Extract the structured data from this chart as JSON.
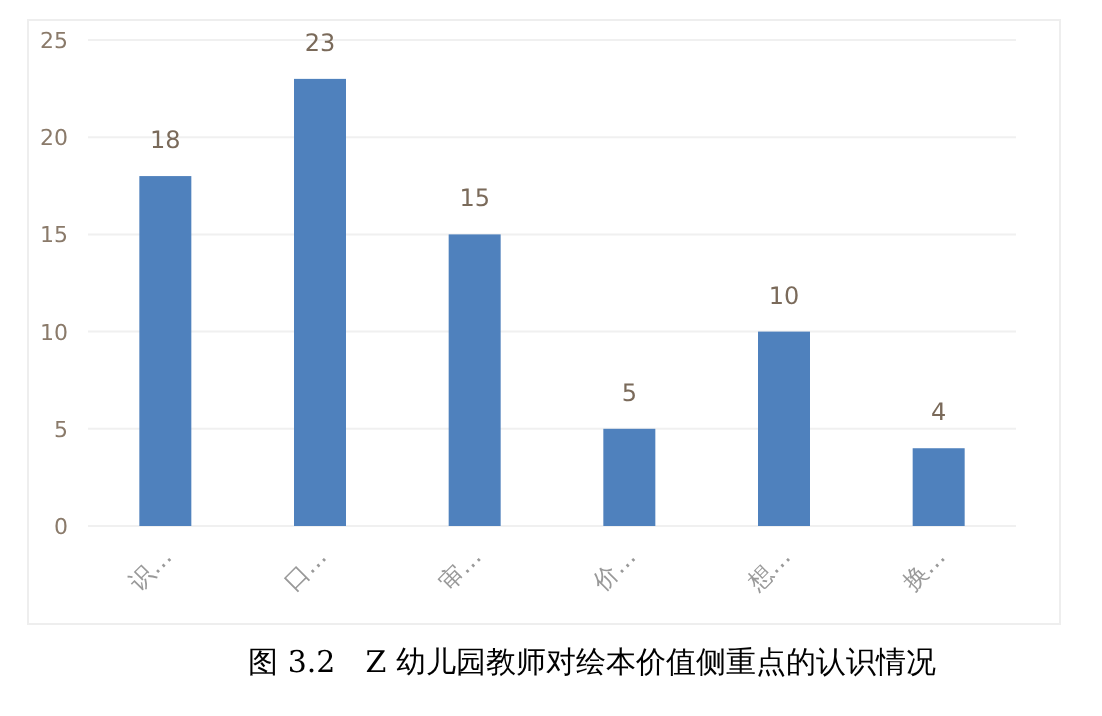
{
  "chart_data": {
    "type": "bar",
    "title": "图 3.2　Z 幼儿园教师对绘本价值侧重点的认识情况",
    "categories": [
      "识…",
      "口…",
      "审…",
      "价…",
      "想…",
      "换…"
    ],
    "values": [
      18,
      23,
      15,
      5,
      10,
      4
    ],
    "color": "#4f81bd",
    "ylim": [
      0,
      25
    ],
    "yticks": [
      0,
      5,
      10,
      15,
      20,
      25
    ],
    "grid": "y",
    "data_labels": true
  }
}
